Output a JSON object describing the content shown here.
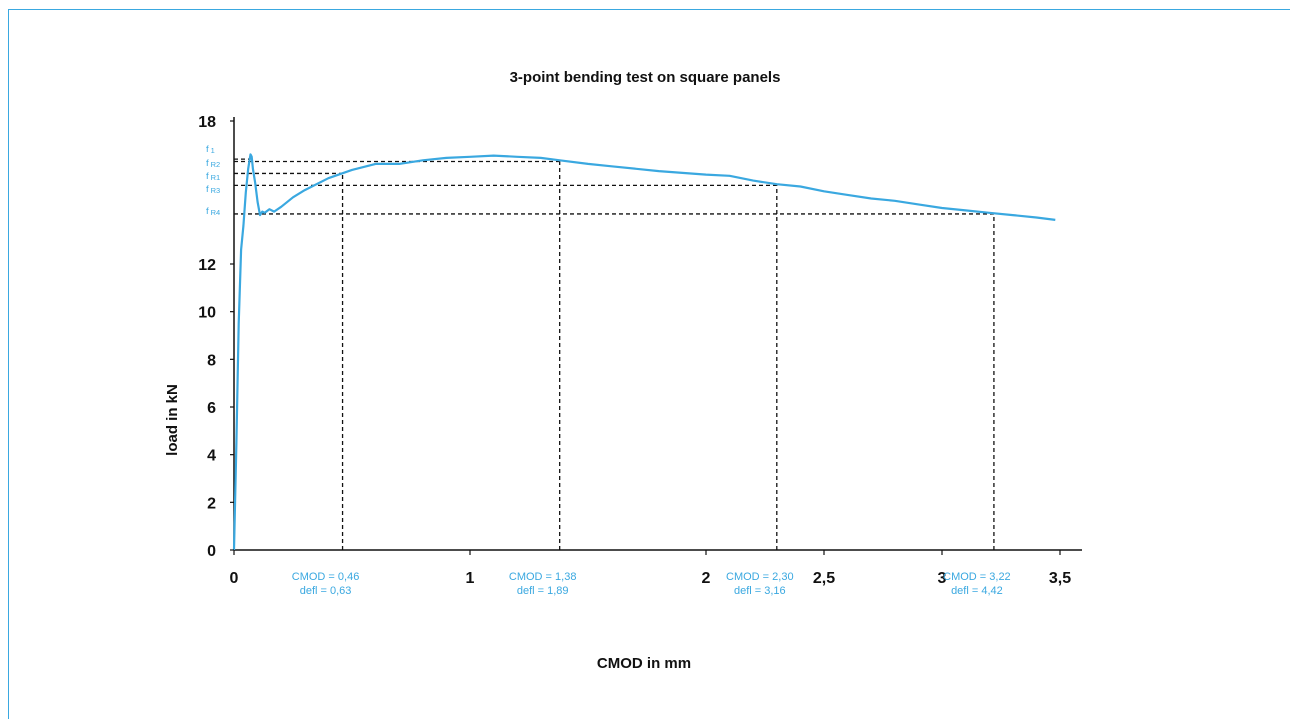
{
  "colors": {
    "curve": "#3aa8e0",
    "axis": "#111111",
    "frame": "#3aa8e0",
    "annotation": "#3aa8e0"
  },
  "chart_data": {
    "type": "line",
    "title": "3-point bending test on square panels",
    "xlabel": "CMOD in mm",
    "ylabel": "load in kN",
    "xlim": [
      0,
      3.5
    ],
    "ylim": [
      0,
      18
    ],
    "x_ticks": [
      {
        "value": 0,
        "label": "0"
      },
      {
        "value": 1,
        "label": "1"
      },
      {
        "value": 2,
        "label": "2"
      },
      {
        "value": 2.5,
        "label": "2,5"
      },
      {
        "value": 3,
        "label": "3"
      },
      {
        "value": 3.5,
        "label": "3,5"
      }
    ],
    "y_ticks": [
      {
        "value": 0,
        "label": "0"
      },
      {
        "value": 2,
        "label": "2"
      },
      {
        "value": 4,
        "label": "4"
      },
      {
        "value": 6,
        "label": "6"
      },
      {
        "value": 8,
        "label": "8"
      },
      {
        "value": 10,
        "label": "10"
      },
      {
        "value": 12,
        "label": "12"
      },
      {
        "value": 18,
        "label": "18"
      }
    ],
    "grid": false,
    "series": [
      {
        "x": [
          0,
          0.01,
          0.02,
          0.03,
          0.04,
          0.05,
          0.06,
          0.07,
          0.075,
          0.08,
          0.09,
          0.1,
          0.11,
          0.12,
          0.13,
          0.15,
          0.17,
          0.2,
          0.25,
          0.3,
          0.4,
          0.5,
          0.6,
          0.7,
          0.8,
          0.9,
          1.0,
          1.1,
          1.2,
          1.3,
          1.38,
          1.5,
          1.6,
          1.8,
          2.0,
          2.1,
          2.2,
          2.3,
          2.4,
          2.5,
          2.6,
          2.7,
          2.8,
          2.9,
          3.0,
          3.1,
          3.2,
          3.3,
          3.4,
          3.48
        ],
        "y": [
          0,
          4.5,
          9.5,
          12.6,
          13.6,
          15.0,
          16.0,
          16.6,
          16.5,
          16.0,
          15.4,
          14.6,
          14.05,
          14.2,
          14.15,
          14.3,
          14.2,
          14.4,
          14.8,
          15.1,
          15.6,
          15.95,
          16.2,
          16.2,
          16.35,
          16.45,
          16.5,
          16.55,
          16.5,
          16.45,
          16.35,
          16.2,
          16.1,
          15.9,
          15.75,
          15.7,
          15.5,
          15.35,
          15.25,
          15.05,
          14.9,
          14.75,
          14.65,
          14.5,
          14.35,
          14.25,
          14.15,
          14.05,
          13.95,
          13.85
        ]
      }
    ],
    "reference_levels": [
      {
        "label": "f",
        "subscript": "1",
        "y": 16.4
      },
      {
        "label": "f",
        "subscript": "R2",
        "y": 16.3
      },
      {
        "label": "f",
        "subscript": "R1",
        "y": 15.8
      },
      {
        "label": "f",
        "subscript": "R3",
        "y": 15.3
      },
      {
        "label": "f",
        "subscript": "R4",
        "y": 14.1
      }
    ],
    "reference_points": [
      {
        "cmod": 0.46,
        "line1": "CMOD = 0,46",
        "line2": "defl = 0,63",
        "y": 15.8
      },
      {
        "cmod": 1.38,
        "line1": "CMOD = 1,38",
        "line2": "defl = 1,89",
        "y": 16.3
      },
      {
        "cmod": 2.3,
        "line1": "CMOD = 2,30",
        "line2": "defl = 3,16",
        "y": 15.3
      },
      {
        "cmod": 3.22,
        "line1": "CMOD = 3,22",
        "line2": "defl = 4,42",
        "y": 14.1
      }
    ]
  }
}
